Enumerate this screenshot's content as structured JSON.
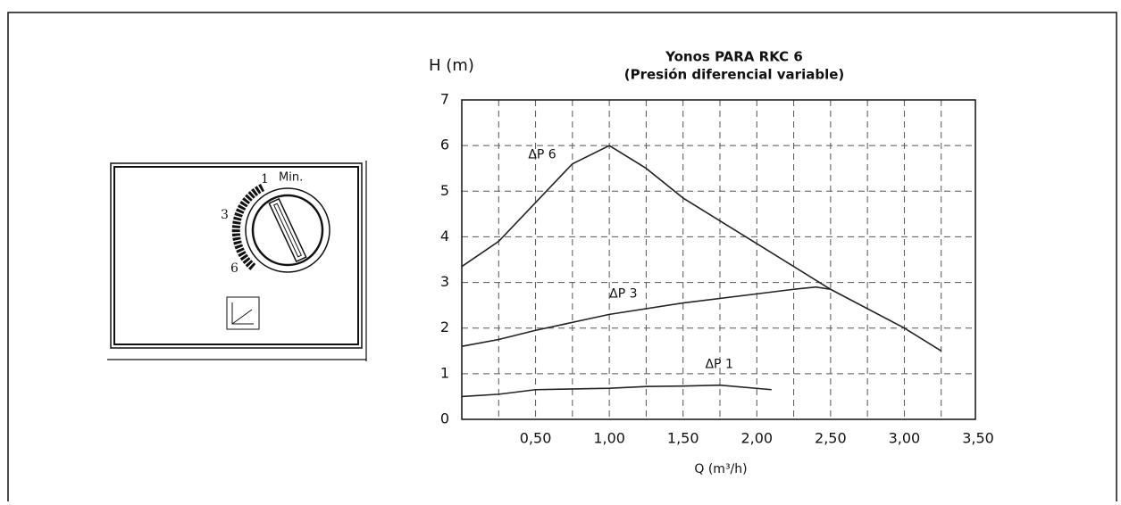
{
  "chart_data": {
    "type": "line",
    "title": "Yonos PARA RKC 6",
    "subtitle": "(Presión diferencial variable)",
    "y_label": "H (m)",
    "x_label": "Q (m³/h)",
    "xlim": [
      0,
      3.5
    ],
    "ylim": [
      0,
      7
    ],
    "xticks": [
      {
        "value": 0.5,
        "label": "0,50"
      },
      {
        "value": 1,
        "label": "1,00"
      },
      {
        "value": 1.5,
        "label": "1,50"
      },
      {
        "value": 2,
        "label": "2,00"
      },
      {
        "value": 2.5,
        "label": "2,50"
      },
      {
        "value": 3,
        "label": "3,00"
      },
      {
        "value": 3.5,
        "label": "3,50"
      }
    ],
    "yticks": [
      0,
      1,
      2,
      3,
      4,
      5,
      6,
      7
    ],
    "xgrid": [
      0.25,
      0.5,
      0.75,
      1,
      1.25,
      1.5,
      1.75,
      2,
      2.25,
      2.5,
      2.75,
      3,
      3.25
    ],
    "grid": true,
    "series": [
      {
        "name": "ΔP 6",
        "color": "#222222",
        "x": [
          0,
          0.25,
          0.5,
          0.75,
          1,
          1.25,
          1.5,
          2,
          2.5,
          3,
          3.25
        ],
        "values": [
          3.35,
          3.9,
          4.75,
          5.6,
          6.0,
          5.5,
          4.85,
          3.85,
          2.85,
          2.0,
          1.5
        ]
      },
      {
        "name": "ΔP 3",
        "color": "#222222",
        "x": [
          0,
          0.25,
          0.5,
          1,
          1.5,
          2,
          2.25,
          2.4,
          2.5
        ],
        "values": [
          1.6,
          1.75,
          1.95,
          2.3,
          2.55,
          2.75,
          2.85,
          2.9,
          2.85
        ]
      },
      {
        "name": "ΔP 1",
        "color": "#222222",
        "x": [
          0,
          0.25,
          0.5,
          1,
          1.25,
          1.5,
          1.75,
          2.1
        ],
        "values": [
          0.5,
          0.55,
          0.65,
          0.68,
          0.72,
          0.73,
          0.75,
          0.65
        ]
      }
    ]
  },
  "knob": {
    "labels": [
      "1",
      "Min.",
      "3",
      "6"
    ]
  }
}
